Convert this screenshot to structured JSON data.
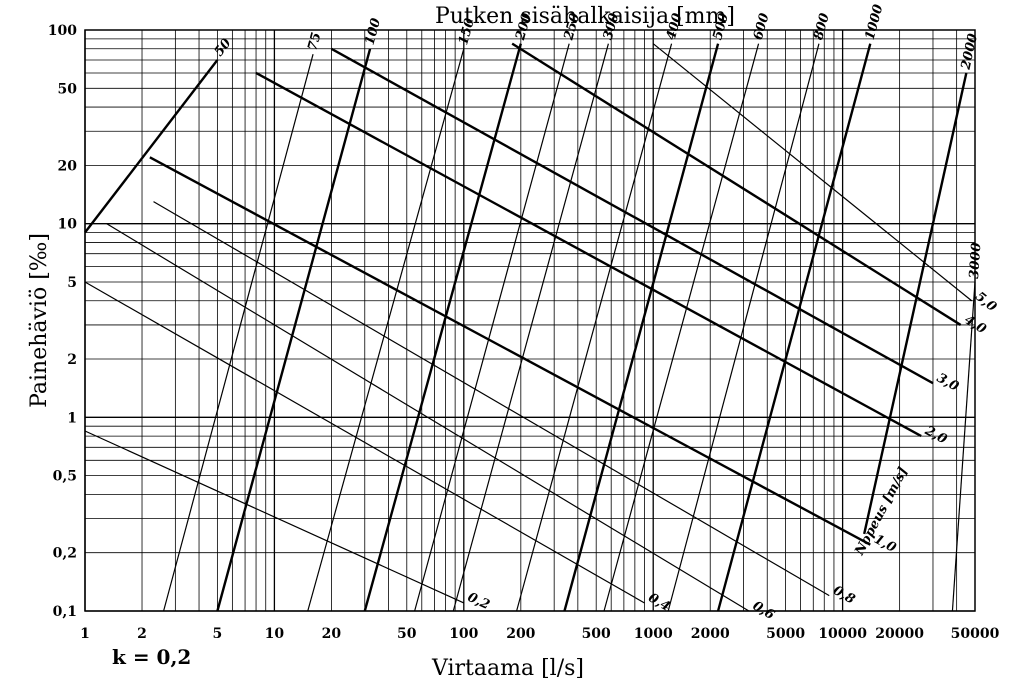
{
  "chart_data": {
    "type": "line",
    "title": "Putken sisähalkaisija [mm]",
    "xlabel": "Virtaama [l/s]",
    "ylabel": "Painehäviö [‰]",
    "x_scale": "log",
    "y_scale": "log",
    "xlim": [
      1,
      50000
    ],
    "ylim": [
      0.1,
      100
    ],
    "x_ticks": [
      1,
      2,
      5,
      10,
      20,
      50,
      100,
      200,
      500,
      1000,
      2000,
      5000,
      10000,
      20000,
      50000
    ],
    "x_tick_labels": [
      "1",
      "2",
      "5",
      "10",
      "20",
      "50",
      "100",
      "200",
      "500",
      "1000",
      "2000",
      "5000",
      "10000",
      "20000",
      "50000"
    ],
    "y_ticks": [
      100,
      50,
      20,
      10,
      5,
      2,
      1,
      0.5,
      0.2,
      0.1
    ],
    "y_tick_labels": [
      "100",
      "50",
      "20",
      "10",
      "5",
      "2",
      "1",
      "0,5",
      "0,2",
      "0,1"
    ],
    "grid": true,
    "note": "k = 0,2",
    "velocity_label": "Nopeus [m/s]",
    "diameter_series": [
      {
        "label": "50",
        "x": [
          1,
          5
        ],
        "y": [
          9,
          70
        ]
      },
      {
        "label": "75",
        "x": [
          2.6,
          16
        ],
        "y": [
          0.1,
          75
        ]
      },
      {
        "label": "100",
        "x": [
          5,
          32
        ],
        "y": [
          0.1,
          80
        ]
      },
      {
        "label": "150",
        "x": [
          15,
          100
        ],
        "y": [
          0.1,
          80
        ]
      },
      {
        "label": "200",
        "x": [
          30,
          200
        ],
        "y": [
          0.1,
          85
        ]
      },
      {
        "label": "250",
        "x": [
          55,
          360
        ],
        "y": [
          0.1,
          85
        ]
      },
      {
        "label": "300",
        "x": [
          88,
          580
        ],
        "y": [
          0.1,
          85
        ]
      },
      {
        "label": "400",
        "x": [
          190,
          1250
        ],
        "y": [
          0.1,
          85
        ]
      },
      {
        "label": "500",
        "x": [
          340,
          2200
        ],
        "y": [
          0.1,
          85
        ]
      },
      {
        "label": "600",
        "x": [
          550,
          3600
        ],
        "y": [
          0.1,
          85
        ]
      },
      {
        "label": "800",
        "x": [
          1200,
          7500
        ],
        "y": [
          0.1,
          85
        ]
      },
      {
        "label": "1000",
        "x": [
          2200,
          14000
        ],
        "y": [
          0.1,
          85
        ]
      },
      {
        "label": "2000",
        "x": [
          13000,
          45000
        ],
        "y": [
          0.25,
          60
        ]
      },
      {
        "label": "3000",
        "x": [
          38000,
          50000
        ],
        "y": [
          0.1,
          5
        ]
      }
    ],
    "velocity_series": [
      {
        "label": "0,2",
        "x": [
          1,
          100
        ],
        "y": [
          0.85,
          0.11
        ]
      },
      {
        "label": "0,4",
        "x": [
          1,
          900
        ],
        "y": [
          5,
          0.11
        ]
      },
      {
        "label": "0,6",
        "x": [
          1.3,
          3200
        ],
        "y": [
          10,
          0.1
        ]
      },
      {
        "label": "0,8",
        "x": [
          2.3,
          8500
        ],
        "y": [
          13,
          0.12
        ]
      },
      {
        "label": "1,0",
        "x": [
          2.2,
          14000
        ],
        "y": [
          22,
          0.22
        ]
      },
      {
        "label": "2,0",
        "x": [
          8,
          26000
        ],
        "y": [
          60,
          0.8
        ]
      },
      {
        "label": "3,0",
        "x": [
          20,
          30000
        ],
        "y": [
          80,
          1.5
        ]
      },
      {
        "label": "4,0",
        "x": [
          180,
          42000
        ],
        "y": [
          85,
          3
        ]
      },
      {
        "label": "5,0",
        "x": [
          1000,
          48000
        ],
        "y": [
          85,
          4
        ]
      }
    ]
  }
}
